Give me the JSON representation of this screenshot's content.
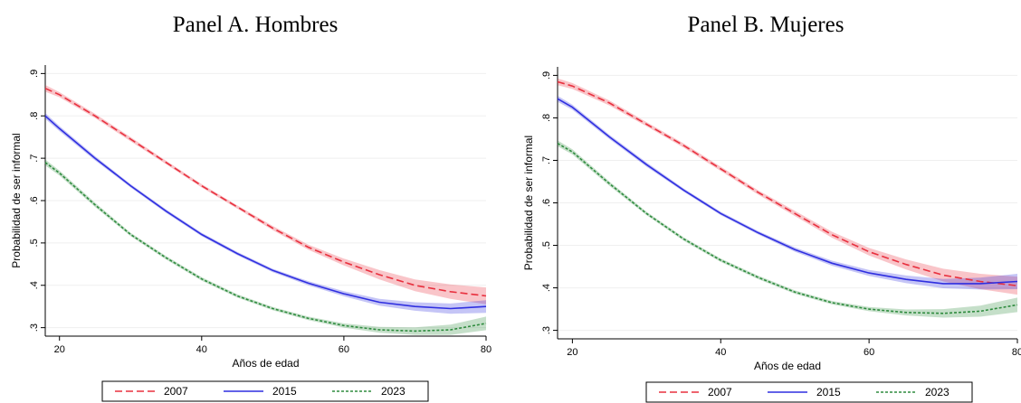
{
  "chart_data": [
    {
      "type": "line",
      "title": "Panel A. Hombres",
      "xlabel": "Años de edad",
      "ylabel": "Probabilidad de ser informal",
      "xlim": [
        18,
        80
      ],
      "ylim": [
        0.28,
        0.92
      ],
      "xticks": [
        20,
        40,
        60,
        80
      ],
      "xtick_labels": [
        "20",
        "40",
        "60",
        "80"
      ],
      "yticks": [
        0.3,
        0.4,
        0.5,
        0.6,
        0.7,
        0.8,
        0.9
      ],
      "ytick_labels": [
        ".3",
        ".4",
        ".5",
        ".6",
        ".7",
        ".8",
        ".9"
      ],
      "grid": true,
      "legend_position": "bottom",
      "series": [
        {
          "name": "2007",
          "color": "#e8303e",
          "dash": "dashed",
          "x": [
            18,
            20,
            25,
            30,
            35,
            40,
            45,
            50,
            55,
            60,
            65,
            70,
            75,
            80
          ],
          "y": [
            0.865,
            0.85,
            0.8,
            0.745,
            0.69,
            0.635,
            0.585,
            0.535,
            0.49,
            0.455,
            0.425,
            0.4,
            0.385,
            0.375
          ],
          "ci": [
            0.008,
            0.006,
            0.005,
            0.005,
            0.004,
            0.004,
            0.004,
            0.005,
            0.006,
            0.008,
            0.011,
            0.014,
            0.017,
            0.02
          ]
        },
        {
          "name": "2015",
          "color": "#2f2fe0",
          "dash": "solid",
          "x": [
            18,
            20,
            25,
            30,
            35,
            40,
            45,
            50,
            55,
            60,
            65,
            70,
            75,
            80
          ],
          "y": [
            0.8,
            0.77,
            0.7,
            0.635,
            0.575,
            0.52,
            0.475,
            0.435,
            0.405,
            0.38,
            0.36,
            0.35,
            0.345,
            0.35
          ],
          "ci": [
            0.007,
            0.006,
            0.005,
            0.004,
            0.004,
            0.004,
            0.004,
            0.004,
            0.005,
            0.006,
            0.008,
            0.01,
            0.012,
            0.015
          ]
        },
        {
          "name": "2023",
          "color": "#2e8b3e",
          "dash": "dotted",
          "x": [
            18,
            20,
            25,
            30,
            35,
            40,
            45,
            50,
            55,
            60,
            65,
            70,
            75,
            80
          ],
          "y": [
            0.69,
            0.665,
            0.59,
            0.52,
            0.465,
            0.415,
            0.375,
            0.345,
            0.322,
            0.305,
            0.295,
            0.292,
            0.295,
            0.31
          ],
          "ci": [
            0.007,
            0.006,
            0.005,
            0.004,
            0.004,
            0.004,
            0.004,
            0.004,
            0.004,
            0.005,
            0.007,
            0.009,
            0.012,
            0.016
          ]
        }
      ]
    },
    {
      "type": "line",
      "title": "Panel B. Mujeres",
      "xlabel": "Años de edad",
      "ylabel": "Probabilidad de ser informal",
      "xlim": [
        18,
        80
      ],
      "ylim": [
        0.28,
        0.92
      ],
      "xticks": [
        20,
        40,
        60,
        80
      ],
      "xtick_labels": [
        "20",
        "40",
        "60",
        "80"
      ],
      "yticks": [
        0.3,
        0.4,
        0.5,
        0.6,
        0.7,
        0.8,
        0.9
      ],
      "ytick_labels": [
        ".3",
        ".4",
        ".5",
        ".6",
        ".7",
        ".8",
        ".9"
      ],
      "grid": true,
      "legend_position": "bottom",
      "series": [
        {
          "name": "2007",
          "color": "#e8303e",
          "dash": "dashed",
          "x": [
            18,
            20,
            25,
            30,
            35,
            40,
            45,
            50,
            55,
            60,
            65,
            70,
            75,
            80
          ],
          "y": [
            0.885,
            0.875,
            0.835,
            0.785,
            0.735,
            0.68,
            0.625,
            0.575,
            0.525,
            0.485,
            0.455,
            0.43,
            0.415,
            0.405
          ],
          "ci": [
            0.008,
            0.007,
            0.006,
            0.005,
            0.005,
            0.005,
            0.005,
            0.006,
            0.007,
            0.009,
            0.012,
            0.015,
            0.018,
            0.021
          ]
        },
        {
          "name": "2015",
          "color": "#2f2fe0",
          "dash": "solid",
          "x": [
            18,
            20,
            25,
            30,
            35,
            40,
            45,
            50,
            55,
            60,
            65,
            70,
            75,
            80
          ],
          "y": [
            0.845,
            0.825,
            0.755,
            0.69,
            0.63,
            0.575,
            0.53,
            0.49,
            0.458,
            0.435,
            0.42,
            0.41,
            0.41,
            0.415
          ],
          "ci": [
            0.007,
            0.006,
            0.005,
            0.005,
            0.004,
            0.004,
            0.004,
            0.005,
            0.006,
            0.007,
            0.009,
            0.011,
            0.014,
            0.018
          ]
        },
        {
          "name": "2023",
          "color": "#2e8b3e",
          "dash": "dotted",
          "x": [
            18,
            20,
            25,
            30,
            35,
            40,
            45,
            50,
            55,
            60,
            65,
            70,
            75,
            80
          ],
          "y": [
            0.74,
            0.72,
            0.645,
            0.575,
            0.515,
            0.465,
            0.425,
            0.39,
            0.365,
            0.35,
            0.342,
            0.34,
            0.345,
            0.36
          ],
          "ci": [
            0.007,
            0.006,
            0.005,
            0.004,
            0.004,
            0.004,
            0.004,
            0.004,
            0.004,
            0.005,
            0.007,
            0.01,
            0.013,
            0.017
          ]
        }
      ]
    }
  ]
}
